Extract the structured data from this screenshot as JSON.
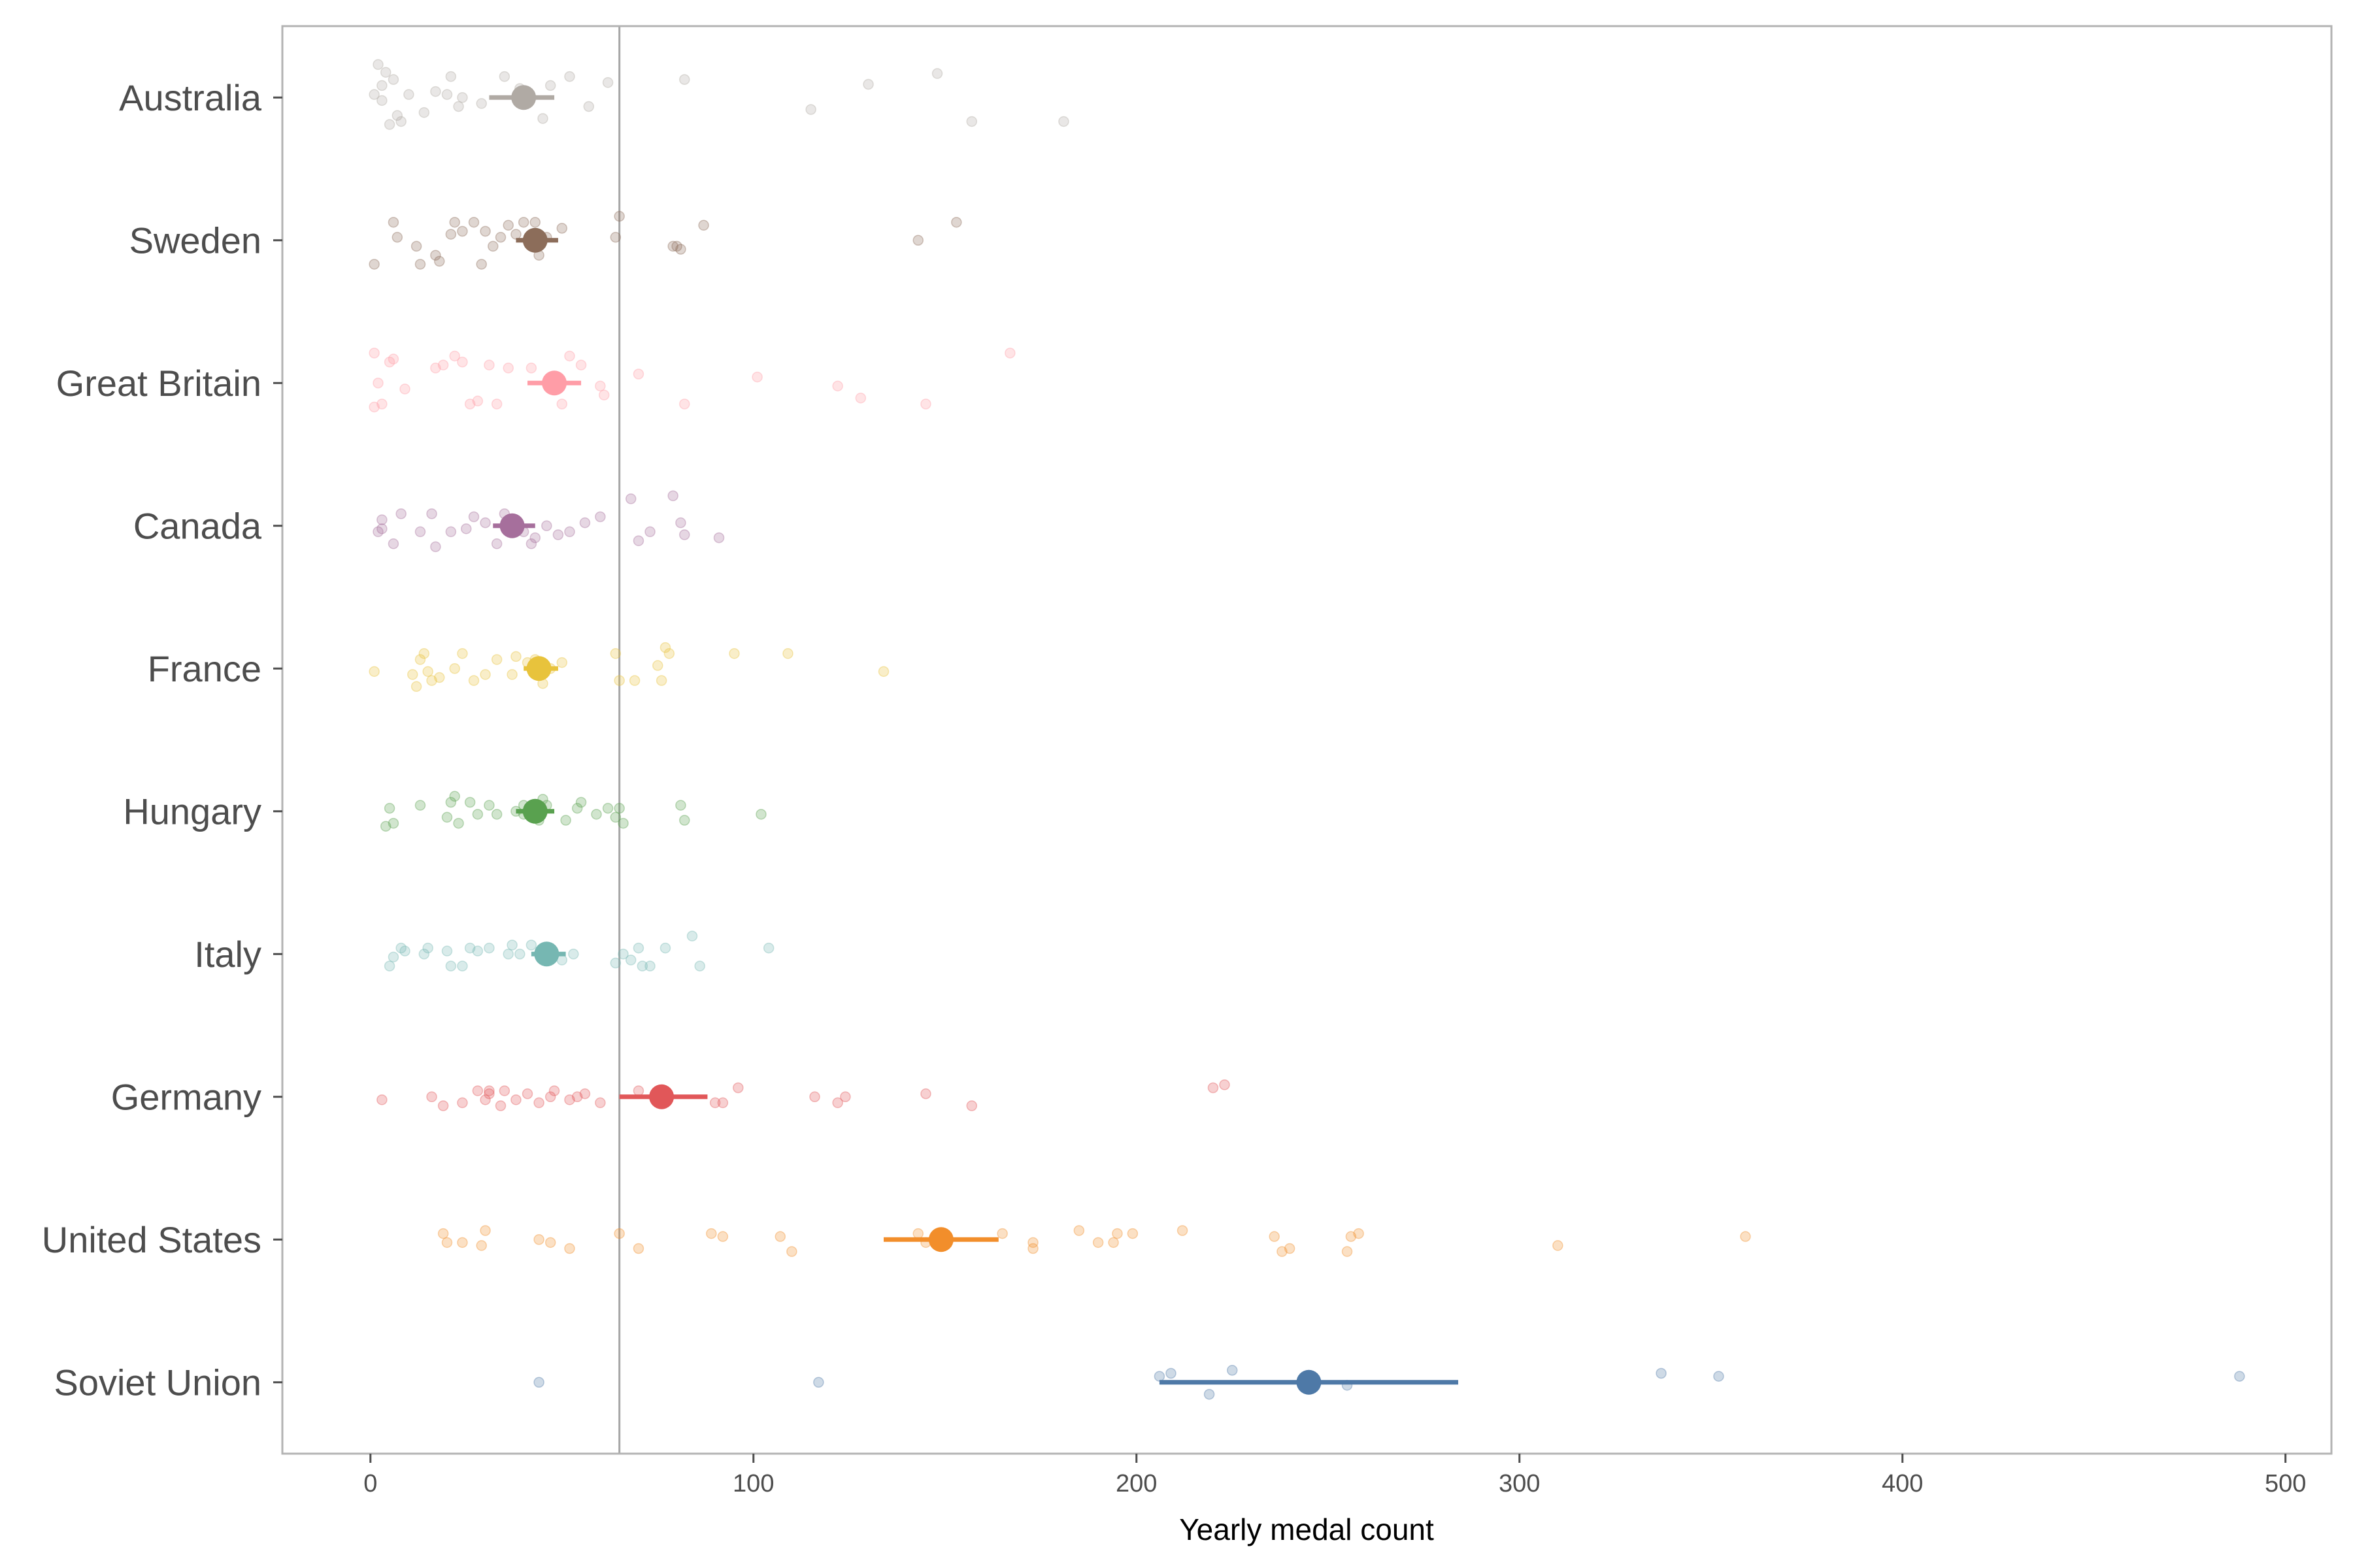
{
  "chart_data": {
    "type": "scatter",
    "xlabel": "Yearly medal count",
    "ylabel": "",
    "xlim": [
      -23,
      512
    ],
    "xticks": [
      0,
      100,
      200,
      300,
      400,
      500
    ],
    "reference_line": 65,
    "grid": false,
    "legend": "none",
    "series": [
      {
        "name": "Australia",
        "color": "#b0aaa4",
        "mean": 40,
        "ci": [
          31,
          48
        ],
        "points": [
          [
            2,
            0.55
          ],
          [
            3,
            -0.05
          ],
          [
            4,
            0.42
          ],
          [
            6,
            0.3
          ],
          [
            7,
            -0.3
          ],
          [
            8,
            -0.4
          ],
          [
            1,
            0.05
          ],
          [
            3,
            0.2
          ],
          [
            5,
            -0.45
          ],
          [
            10,
            0.05
          ],
          [
            14,
            -0.25
          ],
          [
            17,
            0.1
          ],
          [
            20,
            0.05
          ],
          [
            21,
            0.35
          ],
          [
            23,
            -0.15
          ],
          [
            24,
            0.0
          ],
          [
            29,
            -0.1
          ],
          [
            35,
            0.35
          ],
          [
            39,
            0.15
          ],
          [
            45,
            -0.35
          ],
          [
            47,
            0.2
          ],
          [
            52,
            0.35
          ],
          [
            57,
            -0.15
          ],
          [
            62,
            0.25
          ],
          [
            82,
            0.3
          ],
          [
            115,
            -0.2
          ],
          [
            130,
            0.22
          ],
          [
            148,
            0.4
          ],
          [
            157,
            -0.4
          ],
          [
            181,
            -0.4
          ]
        ]
      },
      {
        "name": "Sweden",
        "color": "#8c6d5a",
        "mean": 43,
        "ci": [
          38,
          49
        ],
        "points": [
          [
            1,
            -0.4
          ],
          [
            6,
            0.3
          ],
          [
            7,
            0.05
          ],
          [
            12,
            -0.1
          ],
          [
            13,
            -0.4
          ],
          [
            17,
            -0.25
          ],
          [
            18,
            -0.35
          ],
          [
            21,
            0.1
          ],
          [
            22,
            0.3
          ],
          [
            24,
            0.15
          ],
          [
            27,
            0.3
          ],
          [
            29,
            -0.4
          ],
          [
            30,
            0.15
          ],
          [
            32,
            -0.1
          ],
          [
            34,
            0.05
          ],
          [
            36,
            0.25
          ],
          [
            38,
            0.1
          ],
          [
            40,
            0.3
          ],
          [
            43,
            0.3
          ],
          [
            44,
            -0.25
          ],
          [
            46,
            0.05
          ],
          [
            50,
            0.2
          ],
          [
            64,
            0.05
          ],
          [
            65,
            0.4
          ],
          [
            79,
            -0.1
          ],
          [
            81,
            -0.15
          ],
          [
            87,
            0.25
          ],
          [
            143,
            0.0
          ],
          [
            153,
            0.3
          ],
          [
            80,
            -0.1
          ]
        ]
      },
      {
        "name": "Great Britain",
        "color": "#ff9da7",
        "mean": 48,
        "ci": [
          41,
          55
        ],
        "points": [
          [
            1,
            0.5
          ],
          [
            1,
            -0.4
          ],
          [
            2,
            0.0
          ],
          [
            3,
            -0.35
          ],
          [
            5,
            0.35
          ],
          [
            6,
            0.4
          ],
          [
            9,
            -0.1
          ],
          [
            17,
            0.25
          ],
          [
            19,
            0.3
          ],
          [
            22,
            0.45
          ],
          [
            24,
            0.35
          ],
          [
            26,
            -0.35
          ],
          [
            28,
            -0.3
          ],
          [
            31,
            0.3
          ],
          [
            33,
            -0.35
          ],
          [
            36,
            0.25
          ],
          [
            42,
            0.25
          ],
          [
            48,
            0.0
          ],
          [
            50,
            -0.35
          ],
          [
            52,
            0.45
          ],
          [
            55,
            0.3
          ],
          [
            60,
            -0.05
          ],
          [
            61,
            -0.2
          ],
          [
            70,
            0.15
          ],
          [
            82,
            -0.35
          ],
          [
            101,
            0.1
          ],
          [
            122,
            -0.05
          ],
          [
            128,
            -0.25
          ],
          [
            145,
            -0.35
          ],
          [
            167,
            0.5
          ]
        ]
      },
      {
        "name": "Canada",
        "color": "#a66f9c",
        "mean": 37,
        "ci": [
          32,
          43
        ],
        "points": [
          [
            2,
            -0.1
          ],
          [
            3,
            0.1
          ],
          [
            3,
            -0.05
          ],
          [
            6,
            -0.3
          ],
          [
            8,
            0.2
          ],
          [
            13,
            -0.1
          ],
          [
            16,
            0.2
          ],
          [
            17,
            -0.35
          ],
          [
            21,
            -0.1
          ],
          [
            25,
            -0.05
          ],
          [
            27,
            0.15
          ],
          [
            30,
            0.05
          ],
          [
            33,
            -0.3
          ],
          [
            35,
            0.2
          ],
          [
            37,
            0.1
          ],
          [
            40,
            -0.1
          ],
          [
            42,
            -0.3
          ],
          [
            46,
            0.0
          ],
          [
            49,
            -0.15
          ],
          [
            52,
            -0.1
          ],
          [
            56,
            0.05
          ],
          [
            60,
            0.15
          ],
          [
            68,
            0.45
          ],
          [
            70,
            -0.25
          ],
          [
            73,
            -0.1
          ],
          [
            79,
            0.5
          ],
          [
            81,
            0.05
          ],
          [
            82,
            -0.15
          ],
          [
            91,
            -0.2
          ],
          [
            43,
            -0.2
          ]
        ]
      },
      {
        "name": "France",
        "color": "#e8c33c",
        "mean": 44,
        "ci": [
          40,
          49
        ],
        "points": [
          [
            1,
            -0.05
          ],
          [
            11,
            -0.1
          ],
          [
            12,
            -0.3
          ],
          [
            13,
            0.15
          ],
          [
            14,
            0.25
          ],
          [
            15,
            -0.05
          ],
          [
            16,
            -0.2
          ],
          [
            18,
            -0.15
          ],
          [
            22,
            0.0
          ],
          [
            24,
            0.25
          ],
          [
            27,
            -0.2
          ],
          [
            30,
            -0.1
          ],
          [
            33,
            0.15
          ],
          [
            37,
            -0.1
          ],
          [
            38,
            0.2
          ],
          [
            41,
            0.1
          ],
          [
            43,
            0.15
          ],
          [
            45,
            -0.25
          ],
          [
            47,
            0.0
          ],
          [
            50,
            0.1
          ],
          [
            64,
            0.25
          ],
          [
            65,
            -0.2
          ],
          [
            69,
            -0.2
          ],
          [
            75,
            0.05
          ],
          [
            76,
            -0.2
          ],
          [
            77,
            0.35
          ],
          [
            78,
            0.25
          ],
          [
            95,
            0.25
          ],
          [
            109,
            0.25
          ],
          [
            134,
            -0.05
          ]
        ]
      },
      {
        "name": "Hungary",
        "color": "#59a14f",
        "mean": 43,
        "ci": [
          38,
          48
        ],
        "points": [
          [
            4,
            -0.25
          ],
          [
            5,
            0.05
          ],
          [
            6,
            -0.2
          ],
          [
            13,
            0.1
          ],
          [
            20,
            -0.1
          ],
          [
            21,
            0.15
          ],
          [
            22,
            0.25
          ],
          [
            23,
            -0.2
          ],
          [
            26,
            0.15
          ],
          [
            28,
            -0.05
          ],
          [
            31,
            0.1
          ],
          [
            33,
            -0.05
          ],
          [
            38,
            0.0
          ],
          [
            40,
            0.1
          ],
          [
            44,
            -0.15
          ],
          [
            45,
            0.2
          ],
          [
            46,
            0.1
          ],
          [
            51,
            -0.15
          ],
          [
            55,
            0.15
          ],
          [
            59,
            -0.05
          ],
          [
            62,
            0.05
          ],
          [
            64,
            -0.1
          ],
          [
            65,
            0.05
          ],
          [
            66,
            -0.2
          ],
          [
            81,
            0.1
          ],
          [
            82,
            -0.15
          ],
          [
            102,
            -0.05
          ],
          [
            40,
            -0.05
          ],
          [
            54,
            0.05
          ],
          [
            43,
            0.05
          ]
        ]
      },
      {
        "name": "Italy",
        "color": "#76b7b2",
        "mean": 46,
        "ci": [
          42,
          51
        ],
        "points": [
          [
            5,
            -0.2
          ],
          [
            6,
            -0.05
          ],
          [
            8,
            0.1
          ],
          [
            9,
            0.05
          ],
          [
            14,
            0.0
          ],
          [
            15,
            0.1
          ],
          [
            20,
            0.05
          ],
          [
            21,
            -0.2
          ],
          [
            24,
            -0.2
          ],
          [
            26,
            0.1
          ],
          [
            28,
            0.05
          ],
          [
            31,
            0.1
          ],
          [
            36,
            0.0
          ],
          [
            37,
            0.15
          ],
          [
            39,
            0.0
          ],
          [
            42,
            0.15
          ],
          [
            45,
            -0.05
          ],
          [
            47,
            0.1
          ],
          [
            50,
            -0.1
          ],
          [
            53,
            0.0
          ],
          [
            64,
            -0.15
          ],
          [
            66,
            0.0
          ],
          [
            68,
            -0.1
          ],
          [
            70,
            0.1
          ],
          [
            71,
            -0.2
          ],
          [
            73,
            -0.2
          ],
          [
            77,
            0.1
          ],
          [
            84,
            0.3
          ],
          [
            86,
            -0.2
          ],
          [
            104,
            0.1
          ]
        ]
      },
      {
        "name": "Germany",
        "color": "#e15759",
        "mean": 76,
        "ci": [
          65,
          88
        ],
        "points": [
          [
            3,
            -0.05
          ],
          [
            16,
            0.0
          ],
          [
            19,
            -0.15
          ],
          [
            28,
            0.1
          ],
          [
            30,
            -0.05
          ],
          [
            31,
            0.05
          ],
          [
            34,
            -0.15
          ],
          [
            38,
            -0.05
          ],
          [
            41,
            0.05
          ],
          [
            44,
            -0.1
          ],
          [
            48,
            0.1
          ],
          [
            52,
            -0.05
          ],
          [
            54,
            0.0
          ],
          [
            90,
            -0.1
          ],
          [
            92,
            -0.1
          ],
          [
            96,
            0.15
          ],
          [
            116,
            0.0
          ],
          [
            122,
            -0.1
          ],
          [
            124,
            0.0
          ],
          [
            145,
            0.05
          ],
          [
            157,
            -0.15
          ],
          [
            220,
            0.15
          ],
          [
            223,
            0.2
          ],
          [
            56,
            0.05
          ],
          [
            47,
            0.0
          ],
          [
            24,
            -0.1
          ],
          [
            35,
            0.1
          ],
          [
            60,
            -0.1
          ],
          [
            70,
            0.1
          ],
          [
            31,
            0.1
          ]
        ]
      },
      {
        "name": "United States",
        "color": "#f28e2b",
        "mean": 149,
        "ci": [
          134,
          164
        ],
        "points": [
          [
            19,
            0.1
          ],
          [
            20,
            -0.05
          ],
          [
            24,
            -0.05
          ],
          [
            29,
            -0.1
          ],
          [
            30,
            0.15
          ],
          [
            44,
            0.0
          ],
          [
            47,
            -0.05
          ],
          [
            52,
            -0.15
          ],
          [
            65,
            0.1
          ],
          [
            70,
            -0.15
          ],
          [
            89,
            0.1
          ],
          [
            92,
            0.05
          ],
          [
            107,
            0.05
          ],
          [
            110,
            -0.2
          ],
          [
            143,
            0.1
          ],
          [
            145,
            -0.05
          ],
          [
            165,
            0.1
          ],
          [
            173,
            -0.05
          ],
          [
            173,
            -0.15
          ],
          [
            185,
            0.15
          ],
          [
            190,
            -0.05
          ],
          [
            194,
            -0.05
          ],
          [
            195,
            0.1
          ],
          [
            199,
            0.1
          ],
          [
            212,
            0.15
          ],
          [
            236,
            0.05
          ],
          [
            238,
            -0.2
          ],
          [
            240,
            -0.15
          ],
          [
            255,
            -0.2
          ],
          [
            256,
            0.05
          ],
          [
            258,
            0.1
          ],
          [
            310,
            -0.1
          ],
          [
            359,
            0.05
          ]
        ]
      },
      {
        "name": "Soviet Union",
        "color": "#4e79a7",
        "mean": 245,
        "ci": [
          206,
          284
        ],
        "points": [
          [
            44,
            0.0
          ],
          [
            117,
            0.0
          ],
          [
            206,
            0.1
          ],
          [
            209,
            0.15
          ],
          [
            219,
            -0.2
          ],
          [
            225,
            0.2
          ],
          [
            255,
            -0.05
          ],
          [
            337,
            0.15
          ],
          [
            352,
            0.1
          ],
          [
            488,
            0.1
          ]
        ]
      }
    ]
  }
}
